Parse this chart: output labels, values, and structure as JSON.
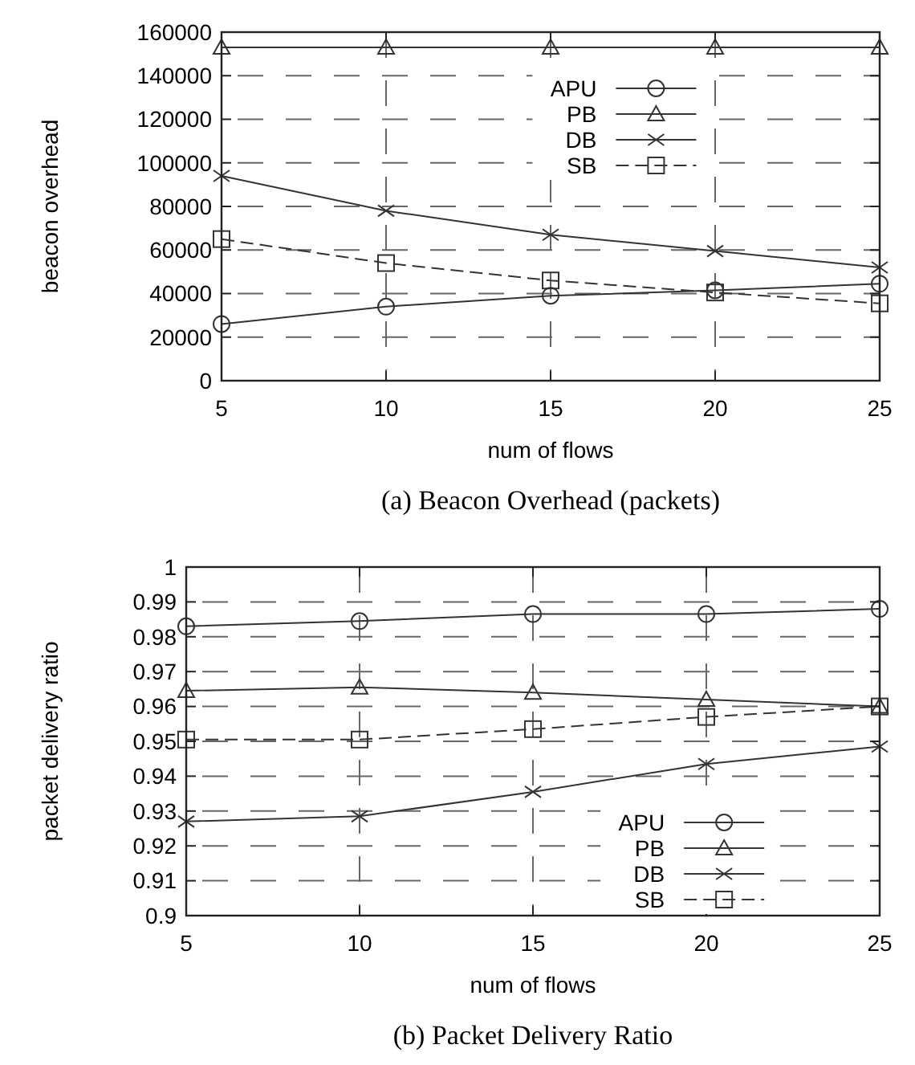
{
  "chart_data": [
    {
      "type": "line",
      "title": "(a) Beacon Overhead (packets)",
      "xlabel": "num of flows",
      "ylabel": "beacon overhead",
      "x": [
        5,
        10,
        15,
        20,
        25
      ],
      "xlim": [
        5,
        25
      ],
      "xticks": [
        5,
        10,
        15,
        20,
        25
      ],
      "ylim": [
        0,
        160000
      ],
      "yticks": [
        0,
        20000,
        40000,
        60000,
        80000,
        100000,
        120000,
        140000,
        160000
      ],
      "grid": true,
      "legend": "top",
      "series": [
        {
          "name": "APU",
          "color": "#333333",
          "marker": "circle",
          "line_style": "solid",
          "values": [
            26000,
            34000,
            39000,
            41500,
            44500
          ]
        },
        {
          "name": "PB",
          "color": "#333333",
          "marker": "triangle",
          "line_style": "solid",
          "values": [
            153000,
            153000,
            153000,
            153000,
            153000
          ]
        },
        {
          "name": "DB",
          "color": "#333333",
          "marker": "cross",
          "line_style": "solid",
          "values": [
            94000,
            78000,
            67000,
            59500,
            52000
          ]
        },
        {
          "name": "SB",
          "color": "#333333",
          "marker": "square",
          "line_style": "dashed",
          "values": [
            65000,
            54000,
            46000,
            40500,
            35500
          ]
        }
      ]
    },
    {
      "type": "line",
      "title": "(b) Packet Delivery Ratio",
      "xlabel": "num of flows",
      "ylabel": "packet delivery ratio",
      "x": [
        5,
        10,
        15,
        20,
        25
      ],
      "xlim": [
        5,
        25
      ],
      "xticks": [
        5,
        10,
        15,
        20,
        25
      ],
      "ylim": [
        0.9,
        1
      ],
      "yticks": [
        0.9,
        0.91,
        0.92,
        0.93,
        0.94,
        0.95,
        0.96,
        0.97,
        0.98,
        0.99,
        1
      ],
      "grid": true,
      "legend": "bottom right",
      "series": [
        {
          "name": "APU",
          "color": "#333333",
          "marker": "circle",
          "line_style": "solid",
          "values": [
            0.983,
            0.9845,
            0.9865,
            0.9865,
            0.988
          ]
        },
        {
          "name": "PB",
          "color": "#333333",
          "marker": "triangle",
          "line_style": "solid",
          "values": [
            0.9645,
            0.9655,
            0.964,
            0.962,
            0.96
          ]
        },
        {
          "name": "DB",
          "color": "#333333",
          "marker": "cross",
          "line_style": "solid",
          "values": [
            0.927,
            0.9285,
            0.9355,
            0.9435,
            0.9485
          ]
        },
        {
          "name": "SB",
          "color": "#333333",
          "marker": "square",
          "line_style": "dashed",
          "values": [
            0.9505,
            0.9505,
            0.9535,
            0.957,
            0.96
          ]
        }
      ]
    }
  ]
}
